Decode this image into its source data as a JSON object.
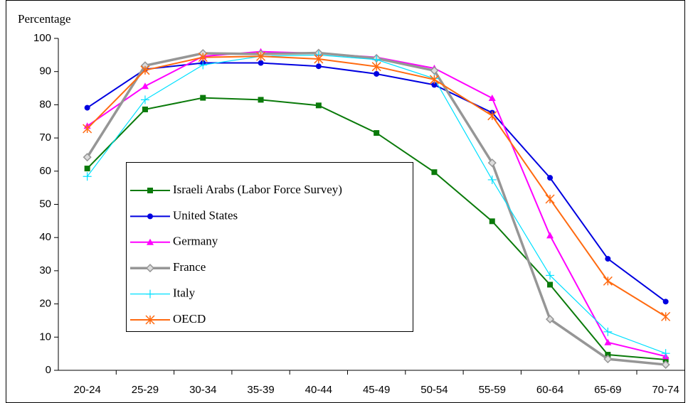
{
  "chart_data": {
    "type": "line",
    "y_label": "Percentage",
    "categories": [
      "20-24",
      "25-29",
      "30-34",
      "35-39",
      "40-44",
      "45-49",
      "50-54",
      "55-59",
      "60-64",
      "65-69",
      "70-74"
    ],
    "ylim": [
      0,
      100
    ],
    "yticks": [
      0,
      10,
      20,
      30,
      40,
      50,
      60,
      70,
      80,
      90,
      100
    ],
    "series": [
      {
        "name": "Israeli Arabs (Labor Force Survey)",
        "color": "#0a7a0a",
        "marker": "square",
        "line_width": 2,
        "values": [
          60.8,
          78.6,
          82.1,
          81.5,
          79.8,
          71.5,
          59.7,
          44.9,
          25.8,
          4.7,
          3.2
        ]
      },
      {
        "name": "United States",
        "color": "#0000e0",
        "marker": "circle",
        "line_width": 2,
        "values": [
          79.1,
          90.7,
          92.6,
          92.6,
          91.6,
          89.3,
          86.0,
          77.6,
          58.0,
          33.6,
          20.7
        ]
      },
      {
        "name": "Germany",
        "color": "#ff00ff",
        "marker": "triangle",
        "line_width": 2,
        "values": [
          73.6,
          85.6,
          94.6,
          96.0,
          95.5,
          94.3,
          91.0,
          82.0,
          40.6,
          8.4,
          4.2
        ]
      },
      {
        "name": "France",
        "color": "#969696",
        "marker": "diamond",
        "line_width": 3.5,
        "values": [
          64.2,
          91.8,
          95.5,
          95.3,
          95.6,
          94.0,
          90.3,
          62.5,
          15.4,
          3.4,
          1.7
        ]
      },
      {
        "name": "Italy",
        "color": "#00e0ff",
        "marker": "plus",
        "line_width": 1.2,
        "values": [
          58.4,
          81.5,
          92.0,
          94.6,
          95.0,
          93.6,
          87.9,
          57.4,
          28.6,
          11.6,
          5.1
        ]
      },
      {
        "name": "OECD",
        "color": "#ff6a10",
        "marker": "asterisk",
        "line_width": 2,
        "values": [
          72.8,
          90.4,
          94.3,
          94.6,
          93.8,
          91.5,
          87.6,
          76.7,
          51.6,
          26.9,
          16.2
        ]
      }
    ]
  }
}
